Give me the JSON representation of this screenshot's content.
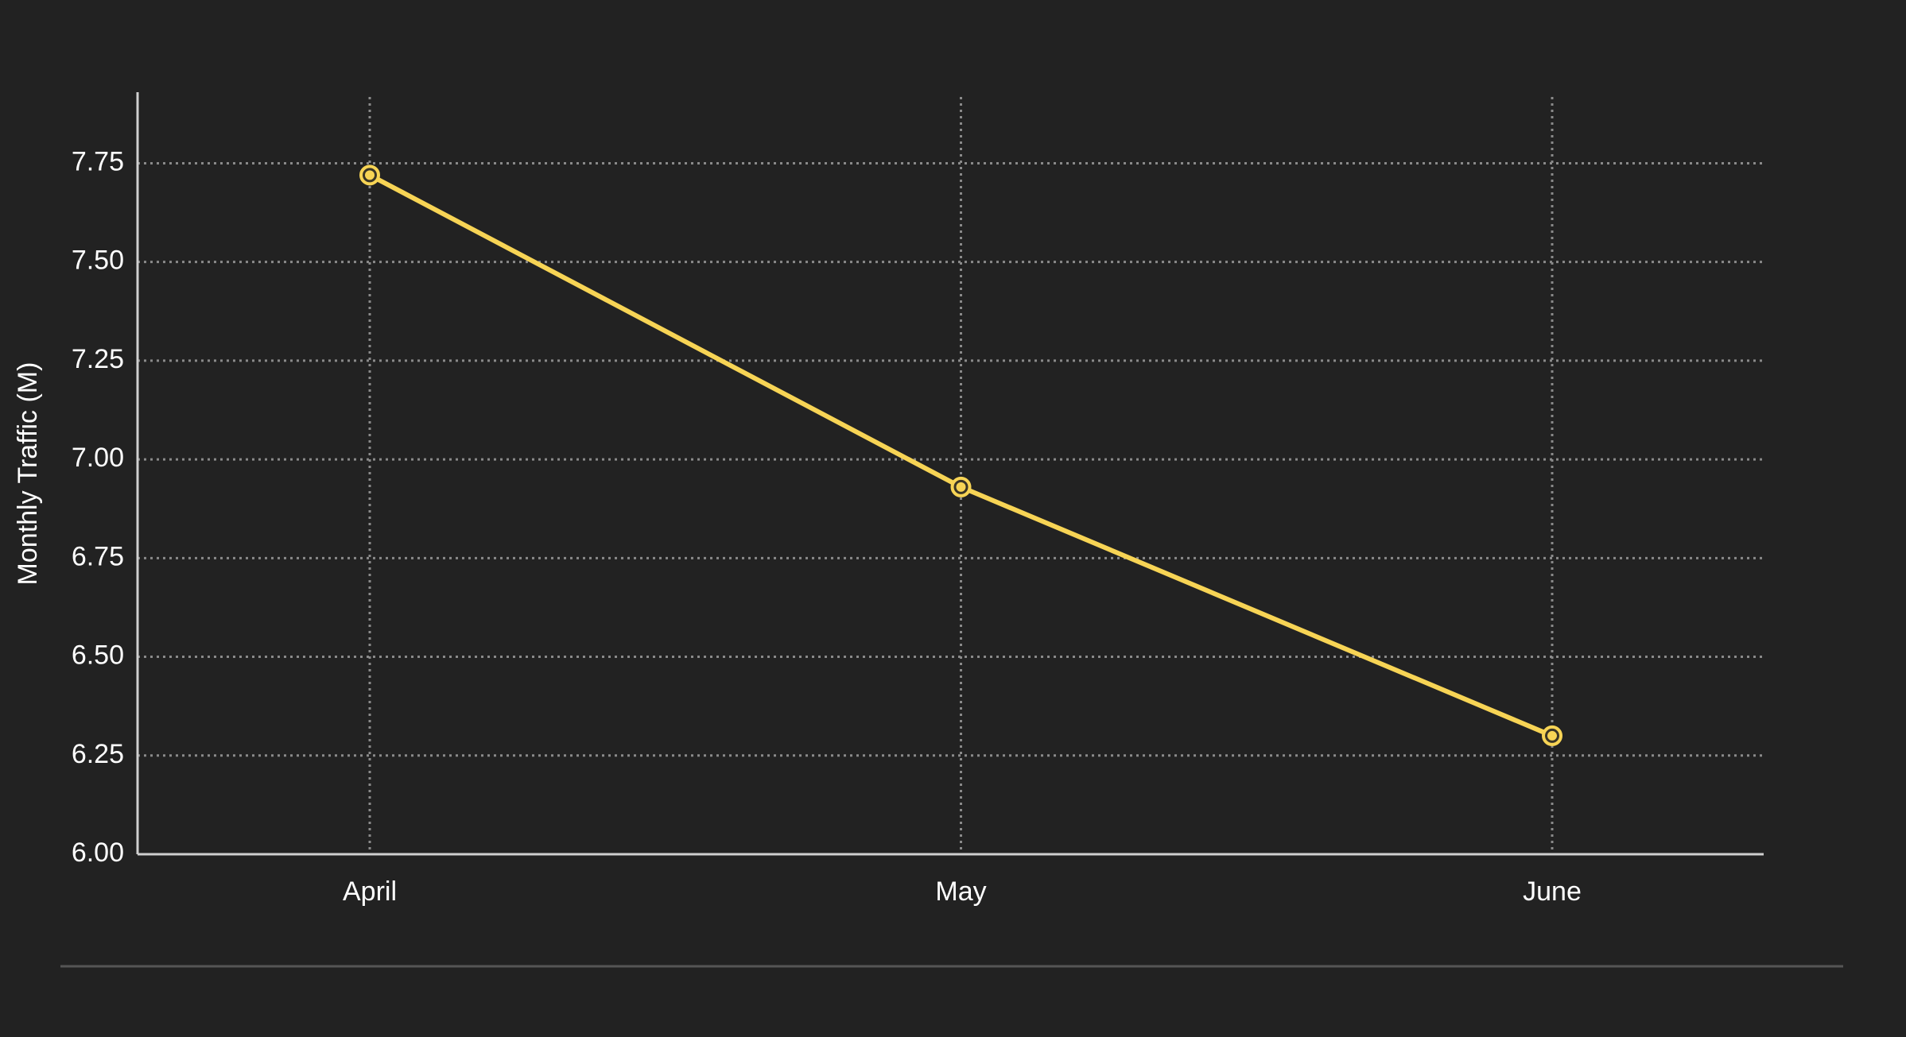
{
  "chart_data": {
    "type": "line",
    "y_label": "Monthly Traffic (M)",
    "categories": [
      "April",
      "May",
      "June"
    ],
    "values": [
      7.72,
      6.93,
      6.3
    ],
    "color": "#f7d455",
    "ylim": [
      6,
      7.93
    ],
    "yticks": [
      {
        "value": 6,
        "label": "6.00"
      },
      6.25,
      {
        "value": 6.5,
        "label": "6.50"
      },
      6.75,
      {
        "value": 7,
        "label": "7.00"
      },
      7.25,
      {
        "value": 7.5,
        "label": "7.50"
      },
      7.75
    ],
    "grid": true
  }
}
